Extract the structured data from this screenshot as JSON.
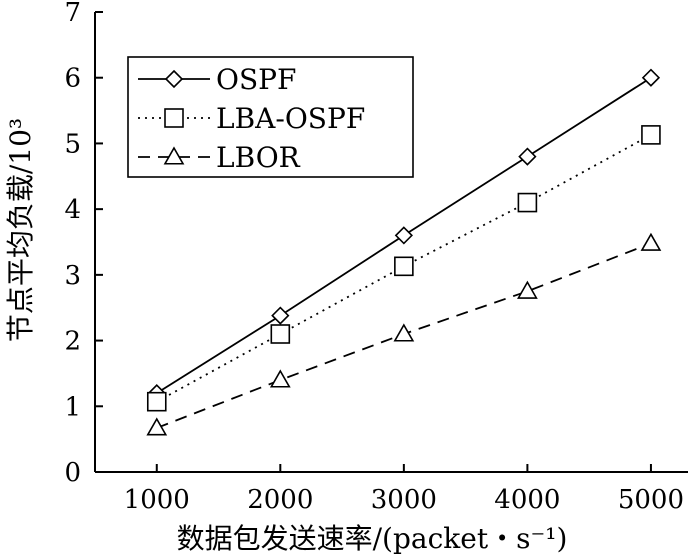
{
  "chart_data": {
    "type": "line",
    "x": [
      1000,
      2000,
      3000,
      4000,
      5000
    ],
    "xlim": [
      500,
      5300
    ],
    "ylim": [
      0,
      7
    ],
    "x_ticks": [
      "1000",
      "2000",
      "3000",
      "4000",
      "5000"
    ],
    "y_ticks": [
      "0",
      "1",
      "2",
      "3",
      "4",
      "5",
      "6",
      "7"
    ],
    "xlabel": "数据包发送速率/(packet・s⁻¹)",
    "ylabel": "节点平均负载/10³",
    "grid": false,
    "legend_position": "top-left",
    "series": [
      {
        "name": "OSPF",
        "values": [
          1.2,
          2.38,
          3.6,
          4.8,
          6.0
        ],
        "marker": "diamond",
        "line_style": "solid",
        "color": "#000000"
      },
      {
        "name": "LBA-OSPF",
        "values": [
          1.07,
          2.1,
          3.13,
          4.1,
          5.13
        ],
        "marker": "square",
        "line_style": "dotted",
        "color": "#000000"
      },
      {
        "name": "LBOR",
        "values": [
          0.67,
          1.4,
          2.1,
          2.75,
          3.48
        ],
        "marker": "triangle",
        "line_style": "dashed",
        "color": "#000000"
      }
    ]
  }
}
